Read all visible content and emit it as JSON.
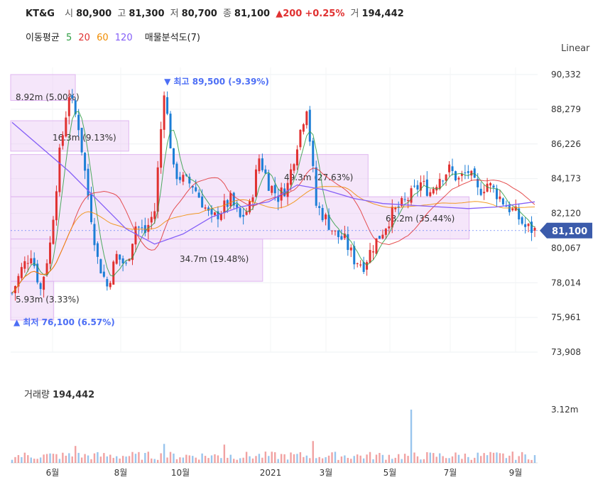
{
  "header": {
    "ticker": "KT&G",
    "open_label": "시",
    "open_value": "80,900",
    "high_label": "고",
    "high_value": "81,300",
    "low_label": "저",
    "low_value": "80,700",
    "close_label": "종",
    "close_value": "81,100",
    "change": "▲200",
    "change_pct": "+0.25%",
    "volume_label": "거",
    "volume_value": "194,442"
  },
  "indicators": {
    "ma_label": "이동평균",
    "ma5": "5",
    "ma20": "20",
    "ma60": "60",
    "ma120": "120",
    "ma5_color": "#2f9e44",
    "ma20_color": "#e03131",
    "ma60_color": "#f08c00",
    "ma120_color": "#845ef7",
    "vp_label": "매물분석도(7)"
  },
  "scale_mode": "Linear",
  "price_box": "81,100",
  "volume_panel": {
    "label": "거래량",
    "value": "194,442",
    "tick": "3.12m"
  },
  "annotations": {
    "high": "▼ 최고 89,500 (-9.39%)",
    "low": "▲ 최저 76,100 (6.57%)"
  },
  "chart_data": {
    "type": "candlestick",
    "y_ticks": [
      "90,332",
      "88,279",
      "86,226",
      "84,173",
      "82,120",
      "80,067",
      "78,014",
      "75,961",
      "73,908"
    ],
    "x_ticks": [
      "6월",
      "8월",
      "10월",
      "2021",
      "3월",
      "5월",
      "7월",
      "9월"
    ],
    "current_price": 81100,
    "high": 89500,
    "low": 76100,
    "price_path": [
      [
        0,
        77400
      ],
      [
        3,
        78800
      ],
      [
        6,
        79800
      ],
      [
        9,
        77600
      ],
      [
        12,
        80300
      ],
      [
        15,
        85600
      ],
      [
        18,
        89200
      ],
      [
        21,
        87300
      ],
      [
        24,
        83200
      ],
      [
        27,
        79400
      ],
      [
        30,
        77800
      ],
      [
        33,
        79600
      ],
      [
        36,
        79000
      ],
      [
        39,
        81400
      ],
      [
        42,
        81000
      ],
      [
        45,
        82300
      ],
      [
        48,
        89500
      ],
      [
        51,
        84600
      ],
      [
        54,
        84100
      ],
      [
        57,
        83800
      ],
      [
        60,
        82800
      ],
      [
        63,
        81700
      ],
      [
        66,
        82300
      ],
      [
        69,
        82900
      ],
      [
        72,
        81800
      ],
      [
        75,
        82500
      ],
      [
        78,
        85400
      ],
      [
        81,
        83900
      ],
      [
        84,
        83100
      ],
      [
        87,
        83800
      ],
      [
        90,
        86300
      ],
      [
        93,
        88500
      ],
      [
        96,
        82600
      ],
      [
        99,
        81800
      ],
      [
        102,
        80900
      ],
      [
        105,
        80500
      ],
      [
        108,
        79400
      ],
      [
        111,
        79100
      ],
      [
        114,
        80200
      ],
      [
        117,
        81100
      ],
      [
        120,
        82100
      ],
      [
        123,
        82600
      ],
      [
        126,
        83200
      ],
      [
        129,
        83900
      ],
      [
        132,
        83400
      ],
      [
        135,
        84300
      ],
      [
        138,
        84700
      ],
      [
        141,
        84100
      ],
      [
        144,
        84600
      ],
      [
        147,
        83400
      ],
      [
        150,
        83900
      ],
      [
        153,
        83300
      ],
      [
        156,
        82600
      ],
      [
        159,
        82100
      ],
      [
        162,
        81300
      ],
      [
        165,
        81100
      ]
    ],
    "ma120_path": [
      [
        0,
        87500
      ],
      [
        18,
        84600
      ],
      [
        36,
        81200
      ],
      [
        45,
        80300
      ],
      [
        54,
        80900
      ],
      [
        63,
        81900
      ],
      [
        72,
        82500
      ],
      [
        81,
        82800
      ],
      [
        90,
        83800
      ],
      [
        99,
        83500
      ],
      [
        108,
        83000
      ],
      [
        117,
        82700
      ],
      [
        126,
        82600
      ],
      [
        135,
        82500
      ],
      [
        144,
        82400
      ],
      [
        153,
        82500
      ],
      [
        165,
        82800
      ]
    ],
    "volume_profile": [
      {
        "label": "8.92m (5.00%)",
        "price_top": 90332,
        "price_bottom": 88800,
        "share": 5.0
      },
      {
        "label": "16.3m (9.13%)",
        "price_top": 87600,
        "price_bottom": 85800,
        "share": 9.13
      },
      {
        "label": "49.3m (27.63%)",
        "price_top": 85600,
        "price_bottom": 83100,
        "share": 27.63
      },
      {
        "label": "63.2m (35.44%)",
        "price_top": 83100,
        "price_bottom": 80600,
        "share": 35.44
      },
      {
        "label": "34.7m (19.48%)",
        "price_top": 80600,
        "price_bottom": 78100,
        "share": 19.48
      },
      {
        "label": "5.93m (3.33%)",
        "price_top": 78100,
        "price_bottom": 75800,
        "share": 3.33
      }
    ]
  }
}
